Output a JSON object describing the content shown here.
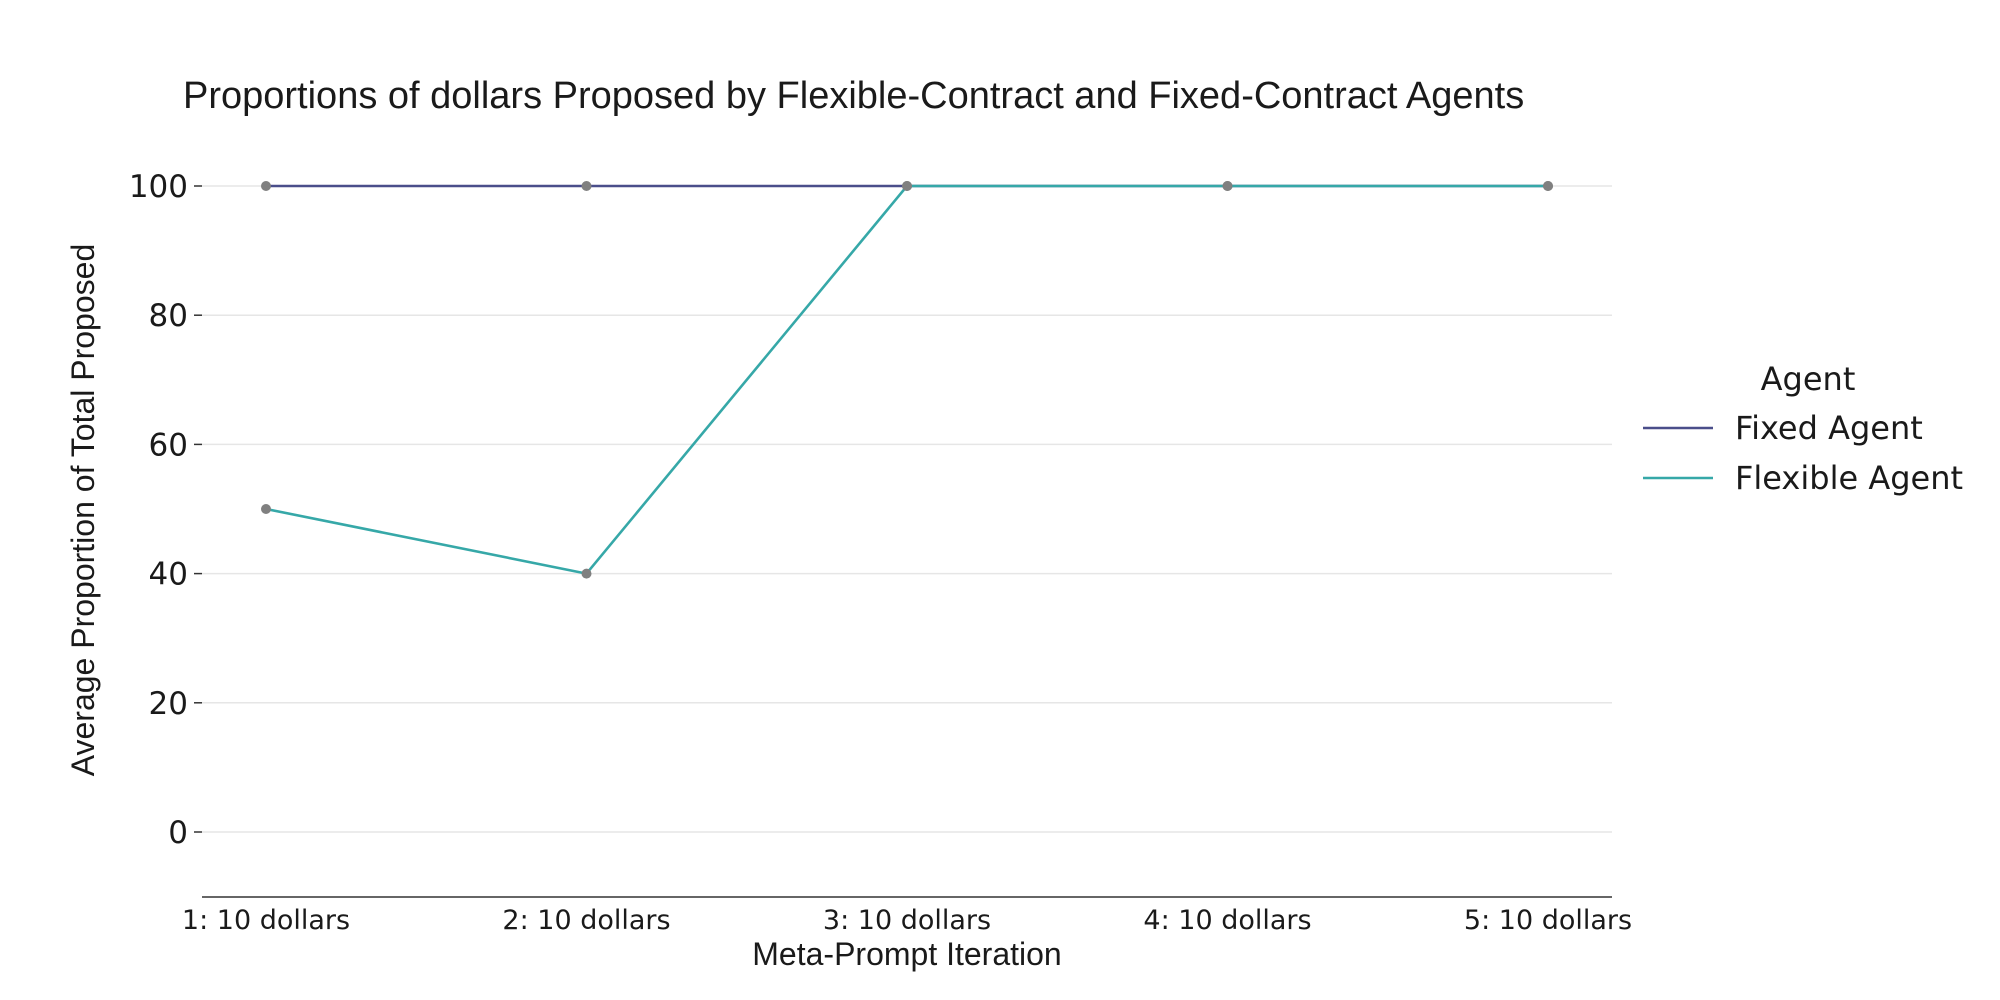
{
  "chart_data": {
    "type": "line",
    "title": "Proportions of dollars Proposed by Flexible-Contract and Fixed-Contract Agents",
    "xlabel": "Meta-Prompt Iteration",
    "ylabel": "Average Proportion of Total Proposed",
    "categories": [
      "1: 10 dollars",
      "2: 10 dollars",
      "3: 10 dollars",
      "4: 10 dollars",
      "5: 10 dollars"
    ],
    "yticks": [
      0,
      20,
      40,
      60,
      80,
      100
    ],
    "ylim": [
      -10,
      110
    ],
    "grid": "horizontal",
    "legend": {
      "title": "Agent",
      "placement": "right"
    },
    "marker_color": "#808080",
    "series": [
      {
        "name": "Fixed Agent",
        "values": [
          100,
          100,
          100,
          100,
          100
        ],
        "color": "#4a4e8a"
      },
      {
        "name": "Flexible Agent",
        "values": [
          50,
          40,
          100,
          100,
          100
        ],
        "color": "#36a8a8"
      }
    ]
  }
}
